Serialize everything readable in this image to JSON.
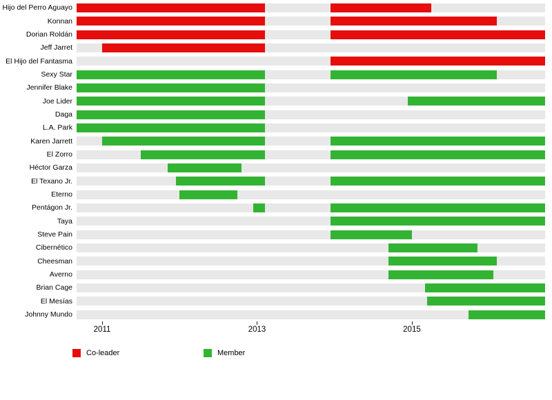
{
  "chart_data": {
    "type": "bar",
    "subtype": "gantt-timeline",
    "title": "",
    "x_range": [
      2010.67,
      2016.72
    ],
    "x_ticks": [
      2011,
      2013,
      2015
    ],
    "grid": false,
    "legend_position": "bottom",
    "colors": {
      "co-leader": "#e60d0d",
      "member": "#33b333",
      "track": "#e8e8e8",
      "tick": "#222222"
    },
    "legend": [
      {
        "label": "Co-leader",
        "role": "co-leader"
      },
      {
        "label": "Member",
        "role": "member"
      }
    ],
    "rows": [
      {
        "label": "Hijo del Perro Aguayo",
        "role": "co-leader",
        "segments": [
          [
            2010.67,
            2013.1
          ],
          [
            2013.95,
            2015.25
          ]
        ]
      },
      {
        "label": "Konnan",
        "role": "co-leader",
        "segments": [
          [
            2010.67,
            2013.1
          ],
          [
            2013.95,
            2016.1
          ]
        ]
      },
      {
        "label": "Dorian Roldán",
        "role": "co-leader",
        "segments": [
          [
            2010.67,
            2013.1
          ],
          [
            2013.95,
            2016.72
          ]
        ]
      },
      {
        "label": "Jeff Jarret",
        "role": "co-leader",
        "segments": [
          [
            2011.0,
            2013.1
          ]
        ]
      },
      {
        "label": "El Hijo del Fantasma",
        "role": "co-leader",
        "segments": [
          [
            2013.95,
            2016.72
          ]
        ]
      },
      {
        "label": "Sexy Star",
        "role": "member",
        "segments": [
          [
            2010.67,
            2013.1
          ],
          [
            2013.95,
            2016.1
          ]
        ]
      },
      {
        "label": "Jennifer Blake",
        "role": "member",
        "segments": [
          [
            2010.67,
            2013.1
          ]
        ]
      },
      {
        "label": "Joe Lider",
        "role": "member",
        "segments": [
          [
            2010.67,
            2013.1
          ],
          [
            2014.95,
            2016.72
          ]
        ]
      },
      {
        "label": "Daga",
        "role": "member",
        "segments": [
          [
            2010.67,
            2013.1
          ]
        ]
      },
      {
        "label": "L.A. Park",
        "role": "member",
        "segments": [
          [
            2010.67,
            2013.1
          ]
        ]
      },
      {
        "label": "Karen Jarrett",
        "role": "member",
        "segments": [
          [
            2011.0,
            2013.1
          ],
          [
            2013.95,
            2016.72
          ]
        ]
      },
      {
        "label": "El Zorro",
        "role": "member",
        "segments": [
          [
            2011.5,
            2013.1
          ],
          [
            2013.95,
            2016.72
          ]
        ]
      },
      {
        "label": "Héctor Garza",
        "role": "member",
        "segments": [
          [
            2011.85,
            2012.8
          ]
        ]
      },
      {
        "label": "El Texano Jr.",
        "role": "member",
        "segments": [
          [
            2011.95,
            2013.1
          ],
          [
            2013.95,
            2016.72
          ]
        ]
      },
      {
        "label": "Eterno",
        "role": "member",
        "segments": [
          [
            2012.0,
            2012.75
          ]
        ]
      },
      {
        "label": "Pentágon Jr.",
        "role": "member",
        "segments": [
          [
            2012.95,
            2013.1
          ],
          [
            2013.95,
            2016.72
          ]
        ]
      },
      {
        "label": "Taya",
        "role": "member",
        "segments": [
          [
            2013.95,
            2016.72
          ]
        ]
      },
      {
        "label": "Steve Pain",
        "role": "member",
        "segments": [
          [
            2013.95,
            2015.0
          ]
        ]
      },
      {
        "label": "Cibernético",
        "role": "member",
        "segments": [
          [
            2014.7,
            2015.85
          ]
        ]
      },
      {
        "label": "Cheesman",
        "role": "member",
        "segments": [
          [
            2014.7,
            2016.1
          ]
        ]
      },
      {
        "label": "Averno",
        "role": "member",
        "segments": [
          [
            2014.7,
            2016.05
          ]
        ]
      },
      {
        "label": "Brian Cage",
        "role": "member",
        "segments": [
          [
            2015.17,
            2016.72
          ]
        ]
      },
      {
        "label": "El Mesías",
        "role": "member",
        "segments": [
          [
            2015.2,
            2016.72
          ]
        ]
      },
      {
        "label": "Johnny Mundo",
        "role": "member",
        "segments": [
          [
            2015.73,
            2016.72
          ]
        ]
      }
    ]
  }
}
